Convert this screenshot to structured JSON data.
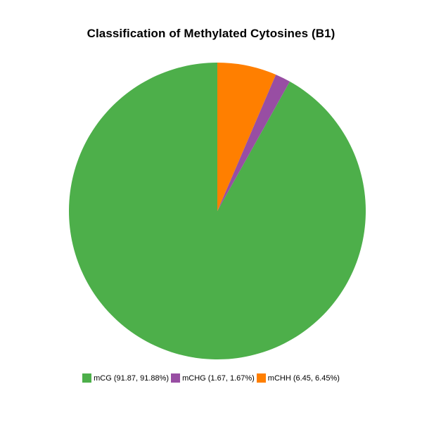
{
  "chart_data": {
    "type": "pie",
    "title": "Classification of Methylated Cytosines (B1)",
    "slices": [
      {
        "label": "mCG (91.87, 91.88%)",
        "value": 91.87,
        "color": "#4daf4a"
      },
      {
        "label": "mCHG (1.67, 1.67%)",
        "value": 1.67,
        "color": "#984ea3"
      },
      {
        "label": "mCHH (6.45, 6.45%)",
        "value": 6.45,
        "color": "#ff7f00"
      }
    ],
    "legend_position": "bottom"
  }
}
